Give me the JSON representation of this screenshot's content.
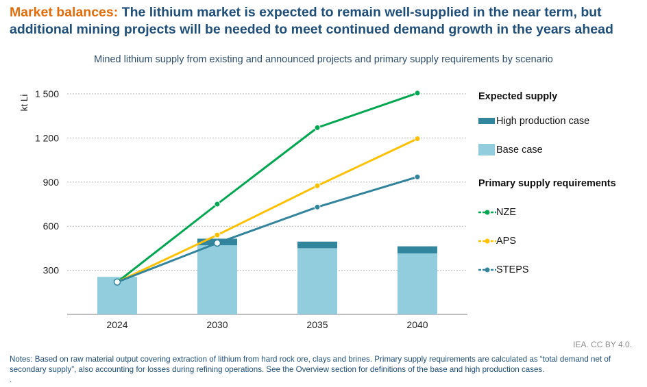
{
  "header": {
    "kicker": "Market balances:",
    "title": " The lithium market is expected to remain well-supplied in the near term, but additional mining projects will be needed to meet continued demand growth in the years ahead"
  },
  "subtitle": "Mined lithium supply from existing and announced projects and primary supply requirements by scenario",
  "legend": {
    "supply_heading": "Expected supply",
    "high_label": "High production case",
    "base_label": "Base case",
    "requirements_heading": "Primary supply requirements",
    "nze_label": "NZE",
    "aps_label": "APS",
    "steps_label": "STEPS"
  },
  "credit": "IEA. CC BY 4.0.",
  "notes": "Notes: Based on raw material output covering extraction of lithium from hard rock ore, clays and brines. Primary supply requirements are calculated as “total demand net of secondary supply”, also accounting for losses during refining operations. See the Overview section for definitions of the base and high production cases.",
  "notes_trailer": ".",
  "colors": {
    "base": "#92cddd",
    "high": "#31859c",
    "nze": "#00a650",
    "aps": "#ffc000",
    "steps": "#31849b",
    "grid": "#b3b3b3",
    "axis": "#7f7f7f"
  },
  "chart_data": {
    "type": "bar",
    "categories": [
      "2024",
      "2030",
      "2035",
      "2040"
    ],
    "ylabel": "kt Li",
    "ylim": [
      0,
      1500
    ],
    "yticks": [
      300,
      600,
      900,
      "1 200",
      "1 500"
    ],
    "grid": true,
    "legend_position": "right",
    "bars": [
      {
        "name": "Base case",
        "values": [
          255,
          470,
          450,
          415
        ]
      },
      {
        "name": "High production case",
        "values": [
          0,
          45,
          45,
          48
        ]
      }
    ],
    "series": [
      {
        "name": "NZE",
        "values": [
          220,
          750,
          1270,
          1505
        ]
      },
      {
        "name": "APS",
        "values": [
          220,
          540,
          875,
          1195
        ]
      },
      {
        "name": "STEPS",
        "values": [
          220,
          485,
          730,
          935
        ]
      }
    ]
  }
}
